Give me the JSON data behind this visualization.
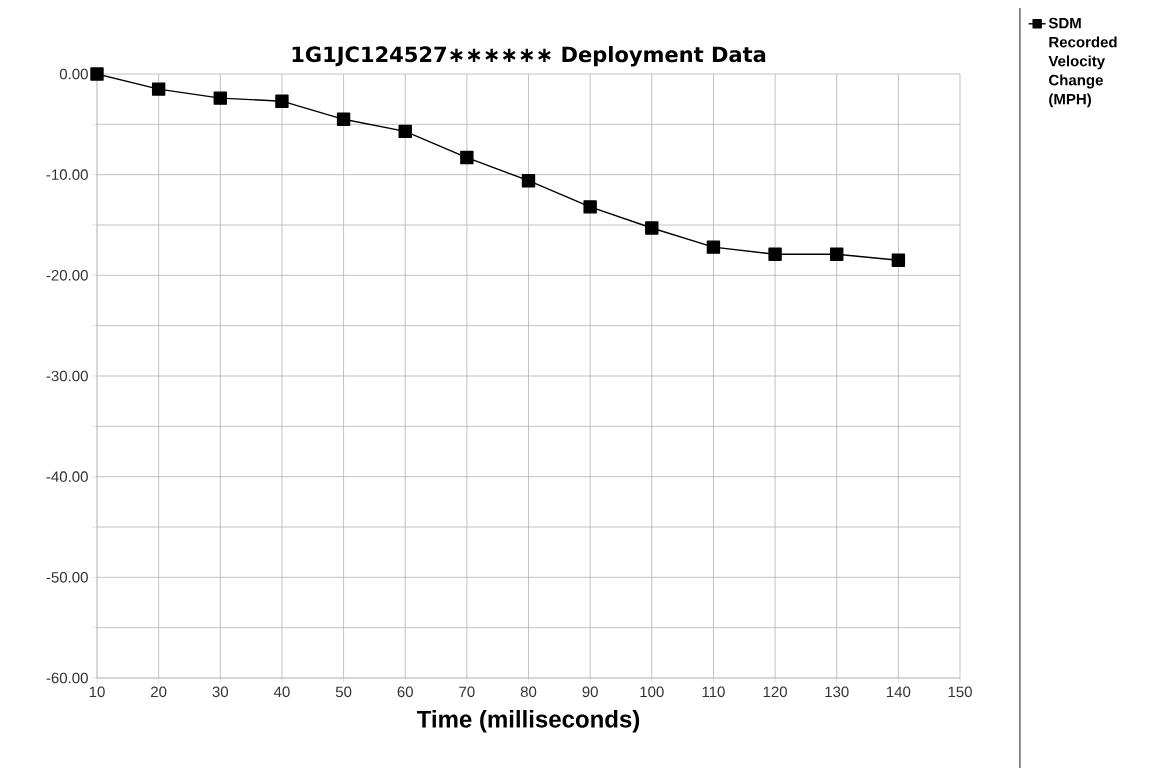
{
  "chart_data": {
    "type": "line",
    "title": "1G1JC124527∗∗∗∗∗∗  Deployment Data",
    "xlabel": "Time (milliseconds)",
    "x": [
      10,
      20,
      30,
      40,
      50,
      60,
      70,
      80,
      90,
      100,
      110,
      120,
      130,
      140
    ],
    "series": [
      {
        "name": "SDM Recorded Velocity Change (MPH)",
        "color": "#000000",
        "values": [
          0,
          -1.5,
          -2.4,
          -2.7,
          -4.5,
          -5.7,
          -8.3,
          -10.6,
          -13.2,
          -15.3,
          -17.2,
          -17.9,
          -17.9,
          -18.5
        ]
      }
    ],
    "xlim": [
      10,
      150
    ],
    "xticks": [
      10,
      20,
      30,
      40,
      50,
      60,
      70,
      80,
      90,
      100,
      110,
      120,
      130,
      140,
      150
    ],
    "ylim": [
      -60,
      0
    ],
    "yticks": [
      {
        "value": -60,
        "label": "-60.00"
      },
      {
        "value": -55,
        "label": null
      },
      {
        "value": -50,
        "label": "-50.00"
      },
      {
        "value": -45,
        "label": null
      },
      {
        "value": -40,
        "label": "-40.00"
      },
      {
        "value": -35,
        "label": null
      },
      {
        "value": -30,
        "label": "-30.00"
      },
      {
        "value": -25,
        "label": null
      },
      {
        "value": -20,
        "label": "-20.00"
      },
      {
        "value": -15,
        "label": null
      },
      {
        "value": -10,
        "label": "-10.00"
      },
      {
        "value": -5,
        "label": null
      },
      {
        "value": 0,
        "label": "0.00"
      }
    ],
    "grid": true,
    "legend": "top right",
    "marker": "square",
    "line_style": "solid"
  }
}
